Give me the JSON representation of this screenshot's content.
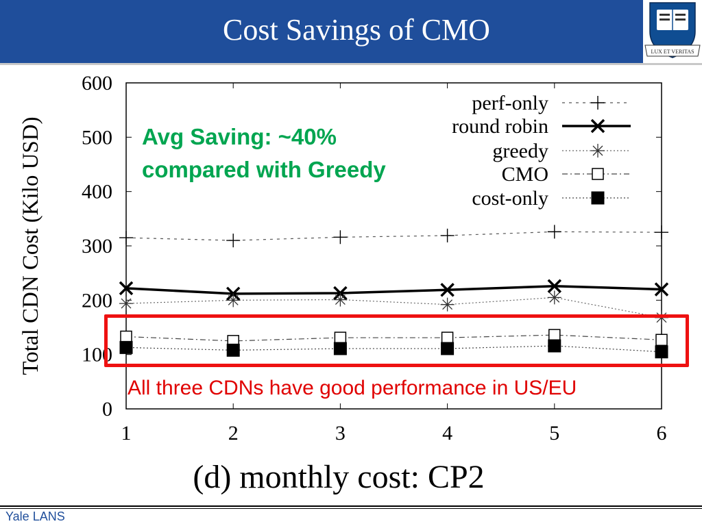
{
  "slide": {
    "title": "Cost Savings of CMO",
    "footer": "Yale LANS",
    "logo_icon": "yale-shield-icon",
    "logo_motto": "LUX ET VERITAS"
  },
  "annotations": {
    "saving_line1": "Avg Saving: ~40%",
    "saving_line2": "compared with Greedy",
    "performance_note": "All three CDNs have good performance in US/EU"
  },
  "colors": {
    "header_bg": "#1f4e9b",
    "annotation_green": "#00a550",
    "annotation_red": "#e00000",
    "highlight_box": "#ee1111"
  },
  "chart_data": {
    "type": "line",
    "title": "(d) monthly cost: CP2",
    "xlabel": "",
    "ylabel": "Total CDN Cost (Kilo USD)",
    "x": [
      1,
      2,
      3,
      4,
      5,
      6
    ],
    "x_ticks": [
      "1",
      "2",
      "3",
      "4",
      "5",
      "6"
    ],
    "y_ticks": [
      "0",
      "100",
      "200",
      "300",
      "400",
      "500",
      "600"
    ],
    "xlim": [
      1,
      6
    ],
    "ylim": [
      0,
      600
    ],
    "grid": false,
    "legend_position": "top-right",
    "series": [
      {
        "name": "perf-only",
        "marker": "plus",
        "values": [
          315,
          310,
          316,
          319,
          326,
          325
        ]
      },
      {
        "name": "round robin",
        "marker": "x",
        "values": [
          222,
          212,
          213,
          219,
          226,
          220
        ]
      },
      {
        "name": "greedy",
        "marker": "star",
        "values": [
          194,
          200,
          201,
          192,
          205,
          168
        ]
      },
      {
        "name": "CMO",
        "marker": "open-square",
        "values": [
          133,
          125,
          131,
          131,
          136,
          127
        ]
      },
      {
        "name": "cost-only",
        "marker": "filled-square",
        "values": [
          113,
          108,
          111,
          111,
          116,
          105
        ]
      }
    ]
  }
}
